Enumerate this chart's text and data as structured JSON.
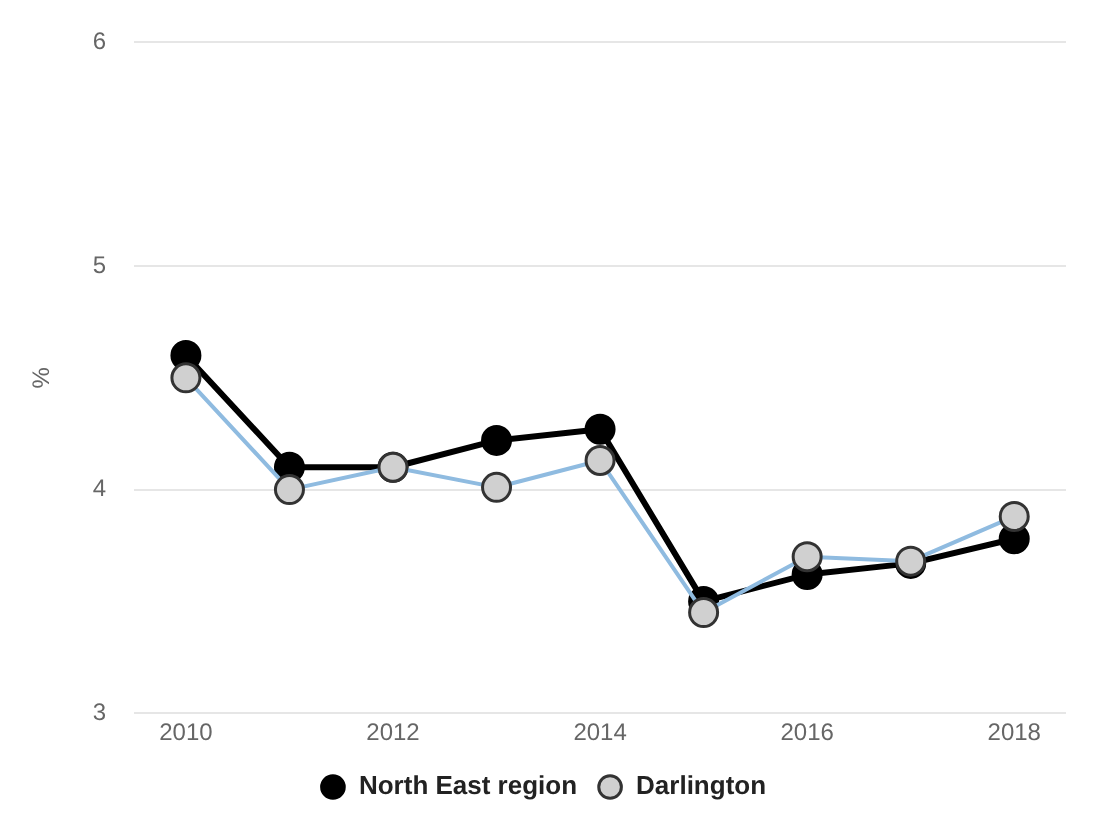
{
  "chart_data": {
    "type": "line",
    "ylabel": "%",
    "x": [
      2010,
      2011,
      2012,
      2013,
      2014,
      2015,
      2016,
      2017,
      2018
    ],
    "series": [
      {
        "name": "North East region",
        "color": "#000000",
        "values": [
          4.6,
          4.1,
          4.1,
          4.22,
          4.27,
          3.5,
          3.62,
          3.67,
          3.78
        ]
      },
      {
        "name": "Darlington",
        "color": "#8fbbe0",
        "values": [
          4.5,
          4.0,
          4.1,
          4.01,
          4.13,
          3.45,
          3.7,
          3.68,
          3.88
        ]
      }
    ],
    "xlim": [
      2009.5,
      2018.5
    ],
    "xticks": [
      2010,
      2012,
      2014,
      2016,
      2018
    ],
    "ylim": [
      3,
      6
    ],
    "yticks": [
      3,
      4,
      5,
      6
    ],
    "grid": "y",
    "legend": "bottom",
    "marker": "circle",
    "line_style": "solid"
  }
}
